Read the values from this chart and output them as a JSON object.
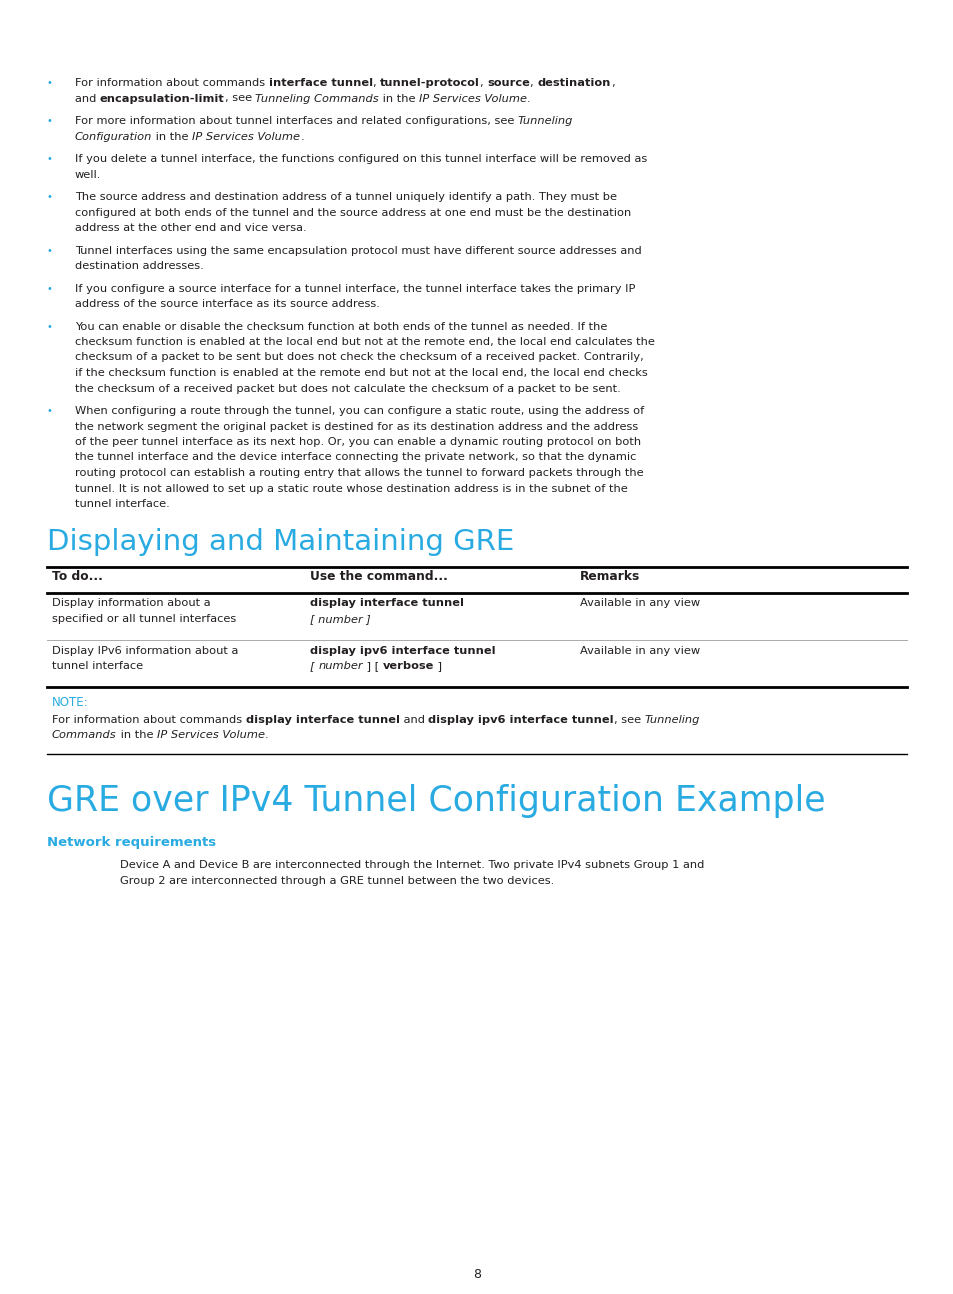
{
  "bg_color": "#ffffff",
  "page_number": "8",
  "cyan_color": "#29ABE2",
  "text_color": "#231F20",
  "section1_title": "Displaying and Maintaining GRE",
  "table_headers": [
    "To do...",
    "Use the command...",
    "Remarks"
  ],
  "table_rows": [
    {
      "col1": [
        "Display information about a",
        "specified or all tunnel interfaces"
      ],
      "col2_bold": "display interface tunnel",
      "col2_rest": [
        "[ number ]"
      ],
      "col2_rest_italic": [
        true
      ],
      "col3": "Available in any view"
    },
    {
      "col1": [
        "Display IPv6 information about a",
        "tunnel interface"
      ],
      "col2_bold": "display ipv6 interface tunnel",
      "col2_rest": [
        "[ number ] [ verbose ]"
      ],
      "col2_rest_italic": [
        true
      ],
      "col3": "Available in any view"
    }
  ],
  "section2_title": "GRE over IPv4 Tunnel Configuration Example",
  "subsection_title": "Network requirements",
  "body_lines": [
    "Device A and Device B are interconnected through the Internet. Two private IPv4 subnets Group 1 and",
    "Group 2 are interconnected through a GRE tunnel between the two devices."
  ]
}
